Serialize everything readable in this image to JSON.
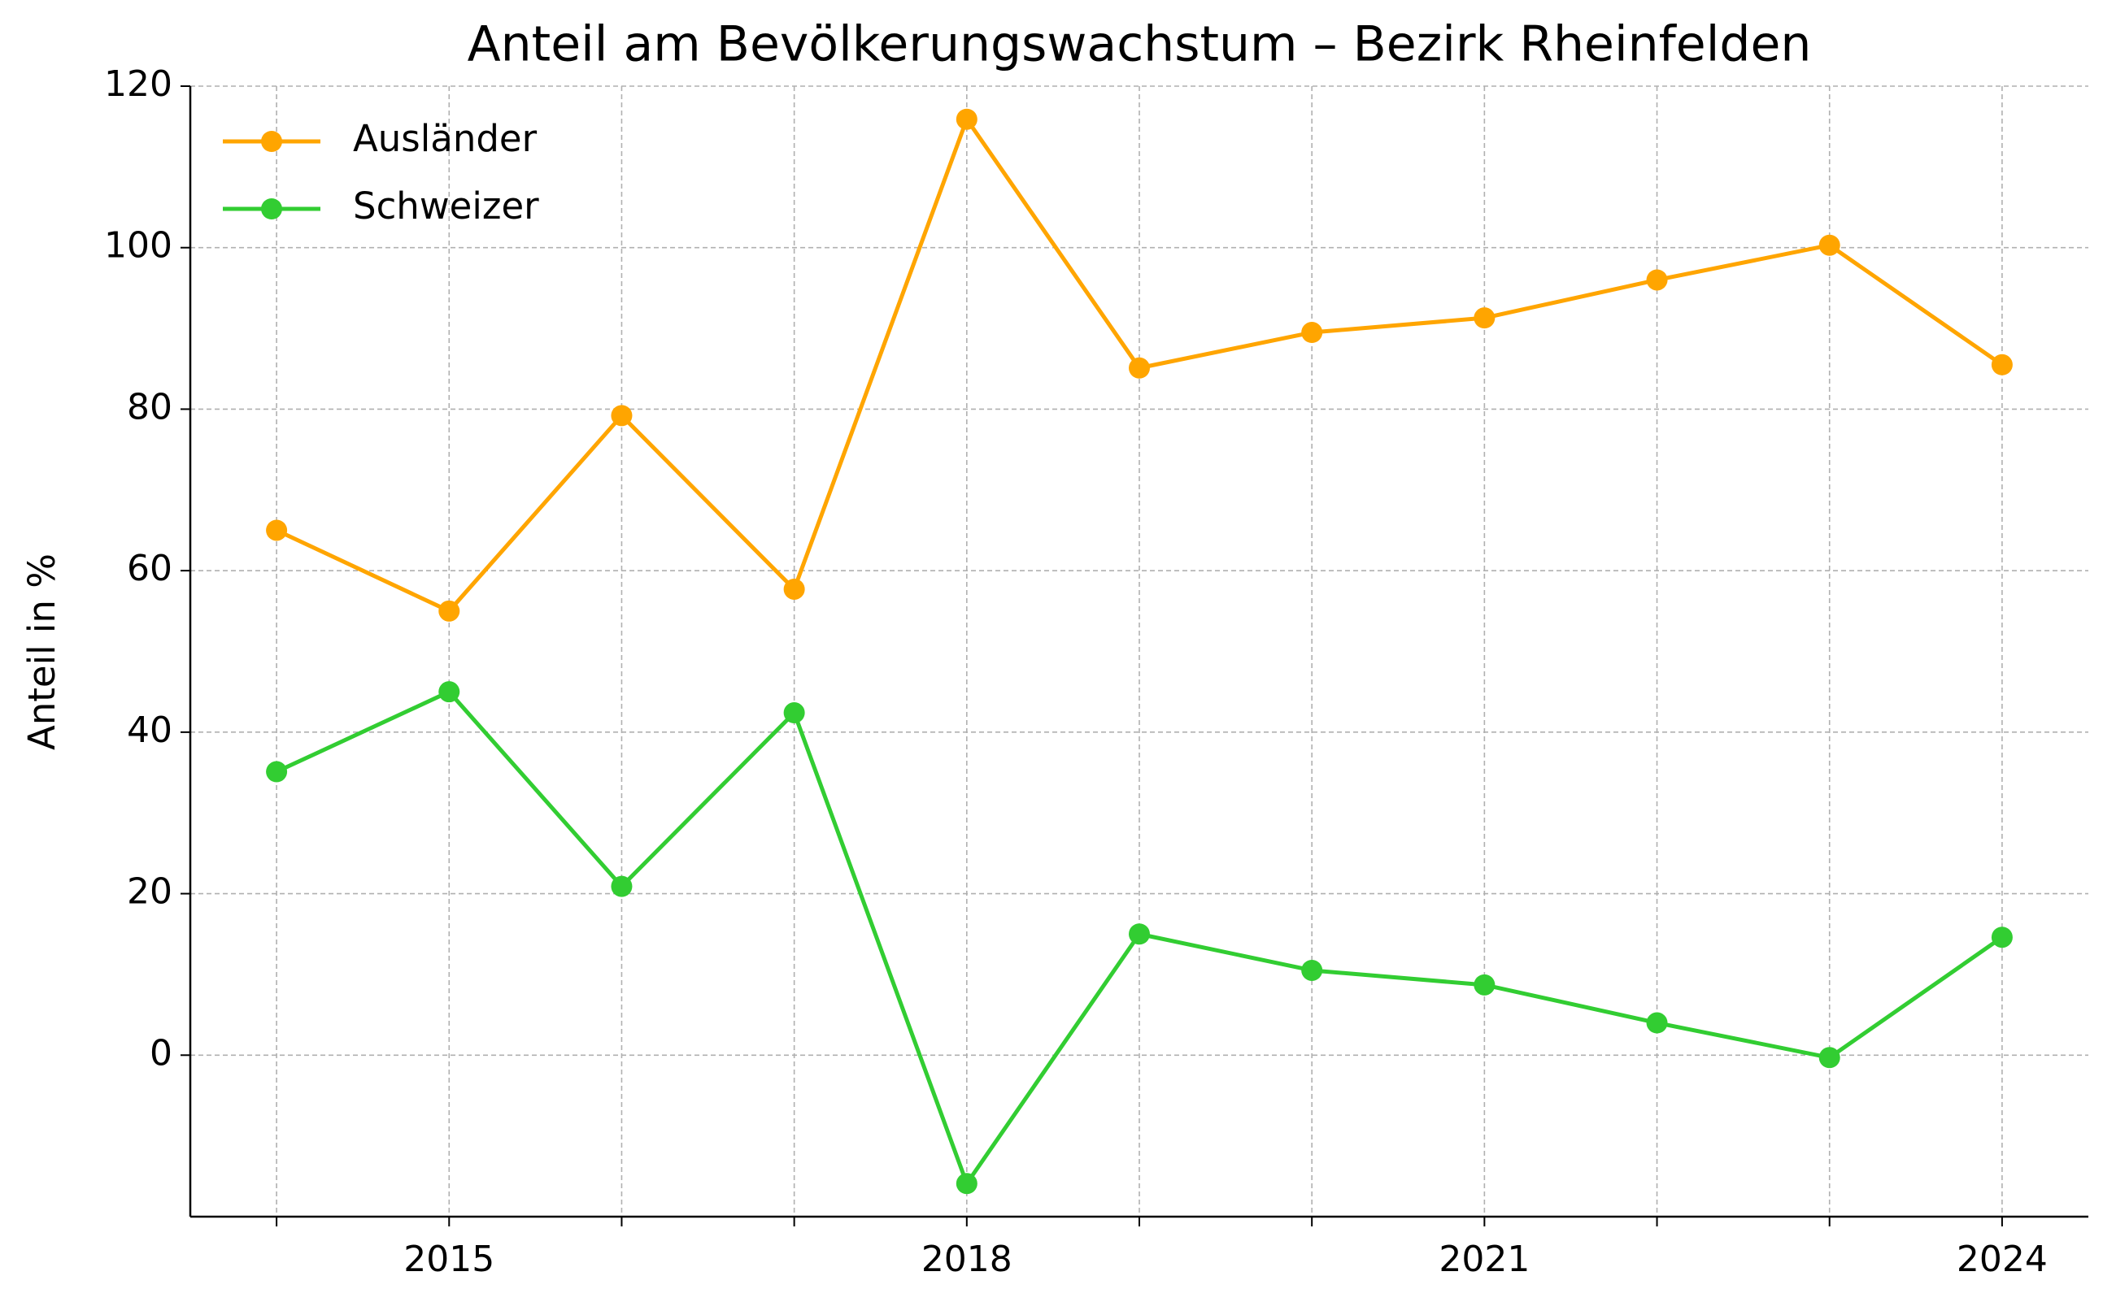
{
  "chart_data": {
    "type": "line",
    "title": "Anteil am Bevölkerungswachstum – Bezirk Rheinfelden",
    "y_label": "Anteil in %",
    "x": [
      2014,
      2015,
      2016,
      2017,
      2018,
      2019,
      2020,
      2021,
      2022,
      2023,
      2024
    ],
    "series": [
      {
        "name": "Ausländer",
        "color": "#ffa500",
        "values": [
          65,
          55,
          79.2,
          57.7,
          115.9,
          85.1,
          89.5,
          91.3,
          96,
          100.3,
          85.5
        ]
      },
      {
        "name": "Schweizer",
        "color": "#32cd32",
        "values": [
          35.1,
          45,
          20.9,
          42.4,
          -15.9,
          15,
          10.5,
          8.7,
          4,
          -0.3,
          14.6
        ]
      }
    ],
    "xlim": [
      2013.5,
      2024.5
    ],
    "xticks": [
      2015,
      2018,
      2021,
      2024
    ],
    "xminorticks": [
      2014,
      2016,
      2017,
      2019,
      2020,
      2022,
      2023
    ],
    "ylim": [
      -20,
      120
    ],
    "yticks": [
      0,
      20,
      40,
      60,
      80,
      100,
      120
    ],
    "grid": true,
    "legend": "upper left"
  }
}
